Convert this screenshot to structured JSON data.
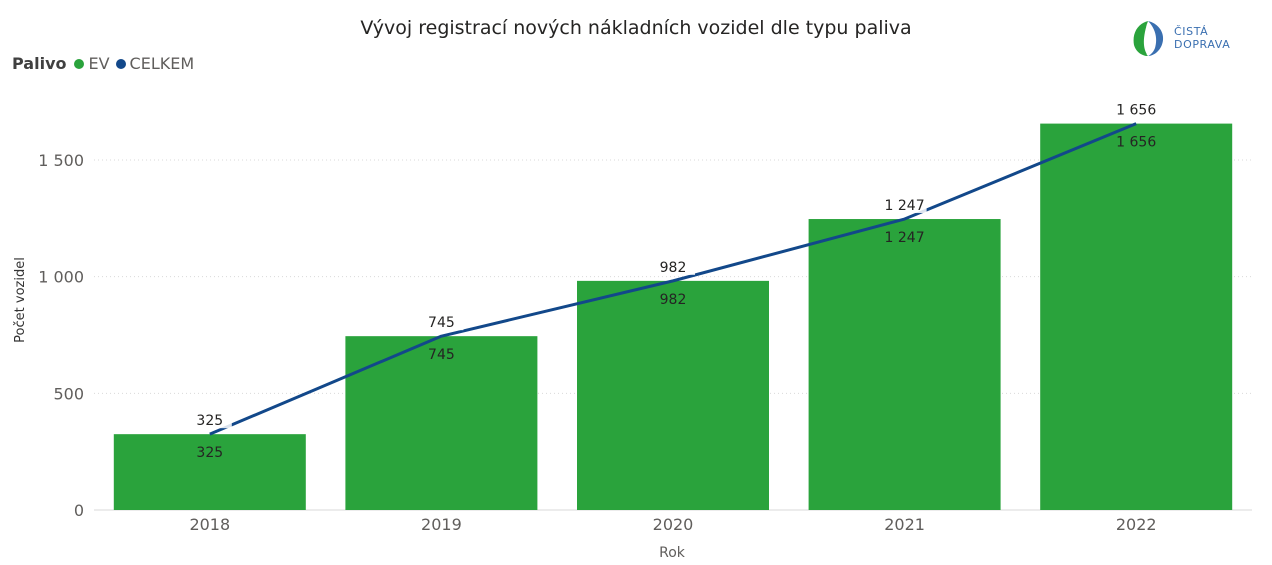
{
  "header": {
    "title": "Vývoj registrací nových nákladních vozidel dle typu paliva"
  },
  "legend": {
    "title": "Palivo",
    "items": [
      {
        "label": "EV",
        "color": "#2aa33c"
      },
      {
        "label": "CELKEM",
        "color": "#12488a"
      }
    ]
  },
  "logo": {
    "line1": "ČISTÁ",
    "line2": "DOPRAVA"
  },
  "chart_data": {
    "type": "bar",
    "title": "Vývoj registrací nových nákladních vozidel dle typu paliva",
    "xlabel": "Rok",
    "ylabel": "Počet vozidel",
    "categories": [
      "2018",
      "2019",
      "2020",
      "2021",
      "2022"
    ],
    "ylim": [
      0,
      1750
    ],
    "yticks": [
      0,
      500,
      1000,
      1500
    ],
    "ytick_labels": [
      "0",
      "500",
      "1 000",
      "1 500"
    ],
    "grid": true,
    "legend_position": "top-left",
    "series": [
      {
        "name": "EV",
        "type": "bar",
        "color": "#2aa33c",
        "values": [
          325,
          745,
          982,
          1247,
          1656
        ],
        "labels": [
          "325",
          "745",
          "982",
          "1 247",
          "1 656"
        ]
      },
      {
        "name": "CELKEM",
        "type": "line",
        "color": "#12488a",
        "values": [
          325,
          745,
          982,
          1247,
          1656
        ],
        "labels": [
          "325",
          "745",
          "982",
          "1 247",
          "1 656"
        ]
      }
    ]
  }
}
